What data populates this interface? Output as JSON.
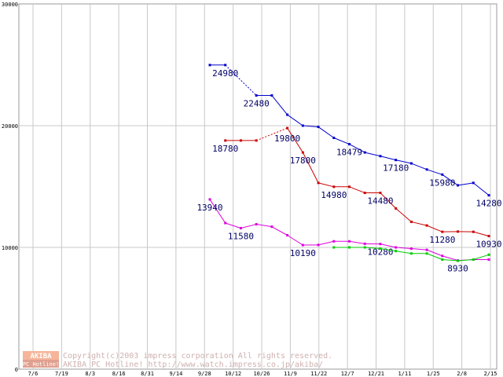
{
  "chart_data": {
    "type": "line",
    "title": "",
    "xlabel": "",
    "ylabel": "",
    "ylim": [
      0,
      30000
    ],
    "grid": true,
    "y_ticks": [
      "0",
      "10000",
      "20000",
      "30000"
    ],
    "x_ticks": [
      "7/6",
      "7/19",
      "8/3",
      "8/16",
      "8/31",
      "9/14",
      "9/28",
      "10/12",
      "10/26",
      "11/9",
      "11/22",
      "12/7",
      "12/21",
      "1/11",
      "1/25",
      "2/8",
      "2/15"
    ],
    "series": [
      {
        "name": "blue",
        "color": "#0000cc",
        "points": [
          [
            0,
            24980
          ],
          [
            1,
            24980
          ],
          [
            3,
            22480
          ],
          [
            4,
            22480
          ],
          [
            5,
            20900
          ],
          [
            6,
            20000
          ],
          [
            7,
            19900
          ],
          [
            8,
            19000
          ],
          [
            9,
            18479
          ],
          [
            10,
            17800
          ],
          [
            11,
            17500
          ],
          [
            12,
            17180
          ],
          [
            13,
            16900
          ],
          [
            14,
            16400
          ],
          [
            15,
            15980
          ],
          [
            16,
            15100
          ],
          [
            17,
            15300
          ],
          [
            18,
            14280
          ]
        ],
        "dashed_segments": [
          [
            1,
            3
          ]
        ],
        "labels": [
          {
            "i": 1,
            "text": "24980",
            "pos": "below"
          },
          {
            "i": 3,
            "text": "22480",
            "pos": "below"
          },
          {
            "i": 9,
            "text": "18479",
            "pos": "below"
          },
          {
            "i": 12,
            "text": "17180",
            "pos": "below"
          },
          {
            "i": 15,
            "text": "15980",
            "pos": "below"
          },
          {
            "i": 18,
            "text": "14280",
            "pos": "below"
          }
        ]
      },
      {
        "name": "red",
        "color": "#cc0000",
        "points": [
          [
            1,
            18780
          ],
          [
            2,
            18780
          ],
          [
            3,
            18780
          ],
          [
            5,
            19800
          ],
          [
            6,
            17800
          ],
          [
            7,
            15300
          ],
          [
            8,
            14980
          ],
          [
            9,
            14980
          ],
          [
            10,
            14480
          ],
          [
            11,
            14480
          ],
          [
            12,
            13200
          ],
          [
            13,
            12100
          ],
          [
            14,
            11800
          ],
          [
            15,
            11280
          ],
          [
            16,
            11300
          ],
          [
            17,
            11280
          ],
          [
            18,
            10930
          ]
        ],
        "dashed_segments": [
          [
            3,
            5
          ]
        ],
        "labels": [
          {
            "i": 1,
            "text": "18780",
            "pos": "below"
          },
          {
            "i": 5,
            "text": "19800",
            "pos": "below-left"
          },
          {
            "i": 6,
            "text": "17800",
            "pos": "below"
          },
          {
            "i": 8,
            "text": "14980",
            "pos": "below"
          },
          {
            "i": 11,
            "text": "14480",
            "pos": "below"
          },
          {
            "i": 15,
            "text": "11280",
            "pos": "below"
          },
          {
            "i": 18,
            "text": "10930",
            "pos": "below"
          }
        ]
      },
      {
        "name": "magenta",
        "color": "#dd00dd",
        "points": [
          [
            0,
            13940
          ],
          [
            1,
            12000
          ],
          [
            2,
            11580
          ],
          [
            3,
            11900
          ],
          [
            4,
            11700
          ],
          [
            5,
            11000
          ],
          [
            6,
            10190
          ],
          [
            7,
            10200
          ],
          [
            8,
            10500
          ],
          [
            9,
            10500
          ],
          [
            10,
            10300
          ],
          [
            11,
            10280
          ],
          [
            12,
            10000
          ],
          [
            13,
            9900
          ],
          [
            14,
            9800
          ],
          [
            15,
            9300
          ],
          [
            16,
            8930
          ],
          [
            17,
            9000
          ],
          [
            18,
            9000
          ]
        ],
        "dashed_segments": [],
        "labels": [
          {
            "i": 0,
            "text": "13940",
            "pos": "below"
          },
          {
            "i": 2,
            "text": "11580",
            "pos": "below"
          },
          {
            "i": 6,
            "text": "10190",
            "pos": "below"
          },
          {
            "i": 11,
            "text": "10280",
            "pos": "below"
          },
          {
            "i": 16,
            "text": "8930",
            "pos": "below"
          }
        ]
      },
      {
        "name": "green",
        "color": "#00cc00",
        "points": [
          [
            8,
            10000
          ],
          [
            9,
            10000
          ],
          [
            10,
            10000
          ],
          [
            11,
            9900
          ],
          [
            12,
            9700
          ],
          [
            13,
            9500
          ],
          [
            14,
            9500
          ],
          [
            15,
            9000
          ],
          [
            16,
            8900
          ],
          [
            17,
            9000
          ],
          [
            18,
            9400
          ]
        ],
        "dashed_segments": [],
        "labels": []
      }
    ]
  },
  "watermark": {
    "logo_top": "AKIBA",
    "logo_bottom": "PC Hotline!",
    "line1": "Copyright(c)2003 impress corporation All rights reserved.",
    "line2": "AKIBA PC Hotline!  http://www.watch.impress.co.jp/akiba/"
  }
}
